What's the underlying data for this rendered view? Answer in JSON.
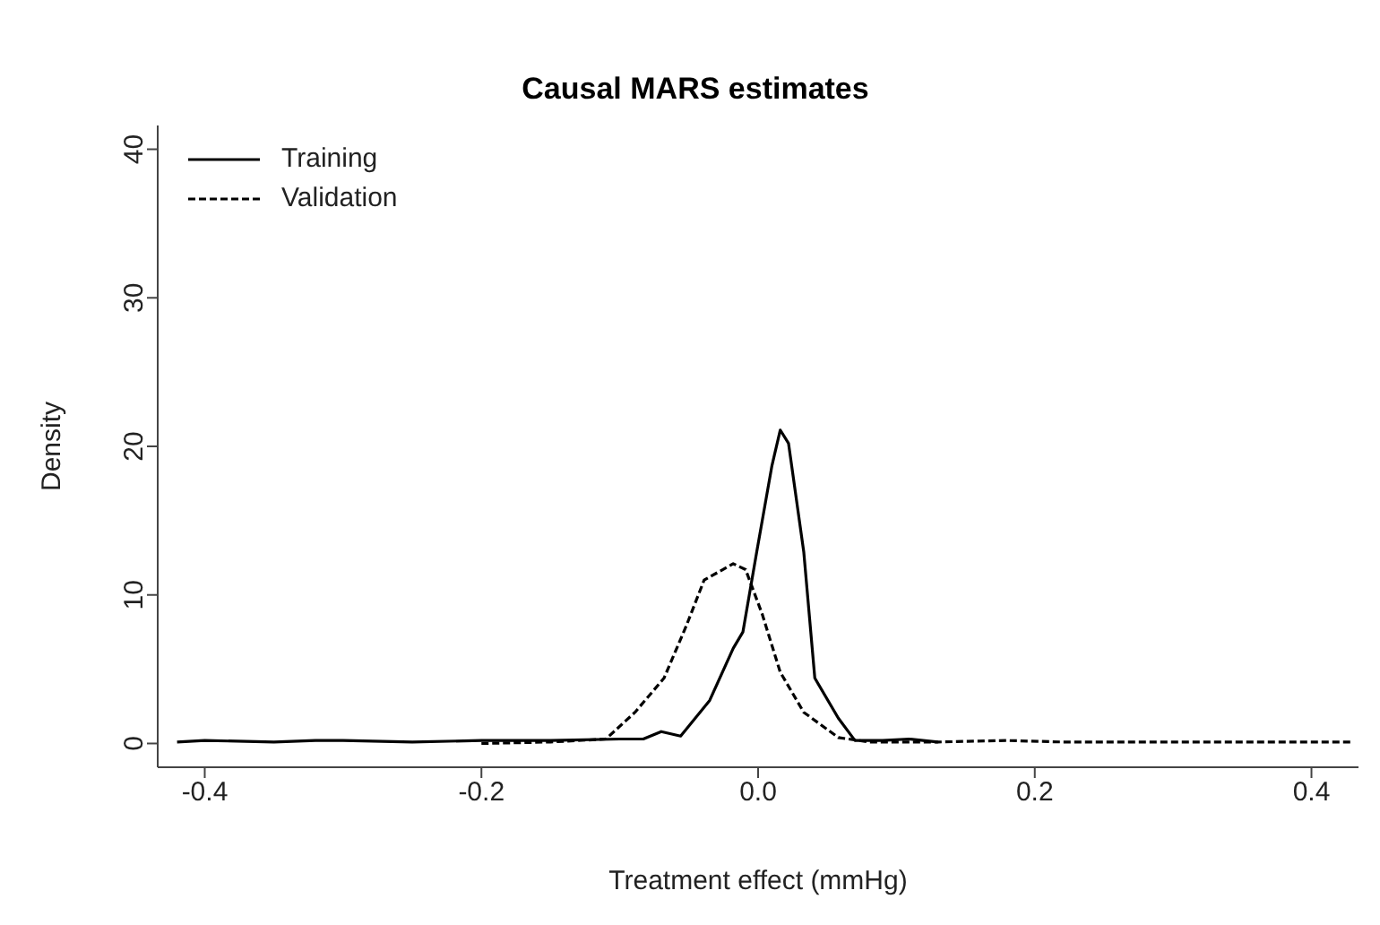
{
  "chart_data": {
    "type": "line",
    "title": "Causal MARS estimates",
    "xlabel": "Treatment effect (mmHg)",
    "ylabel": "Density",
    "xlim": [
      -0.434,
      0.434
    ],
    "xticks": [
      -0.4,
      -0.2,
      {
        "value": 0,
        "label": "0.0"
      },
      0.2,
      0.4
    ],
    "ylim": [
      -1.6,
      41.6
    ],
    "yticks": [
      0,
      10,
      20,
      30,
      40
    ],
    "grid": false,
    "legend": "top left",
    "marker": "none",
    "series": [
      {
        "name": "Training",
        "color": "#000000",
        "line_style": "solid",
        "x": [
          -0.42,
          -0.4,
          -0.35,
          -0.32,
          -0.3,
          -0.25,
          -0.2,
          -0.15,
          -0.1,
          -0.083,
          -0.07,
          -0.056,
          -0.035,
          -0.018,
          -0.011,
          -0.001,
          0.01,
          0.016,
          0.022,
          0.033,
          0.041,
          0.058,
          0.07,
          0.09,
          0.109,
          0.13
        ],
        "values": [
          0.1,
          0.2,
          0.1,
          0.2,
          0.2,
          0.1,
          0.2,
          0.2,
          0.3,
          0.3,
          0.8,
          0.5,
          2.9,
          6.4,
          7.5,
          12.9,
          18.7,
          21.1,
          20.2,
          12.9,
          4.4,
          1.7,
          0.2,
          0.2,
          0.3,
          0.1
        ]
      },
      {
        "name": "Validation",
        "color": "#000000",
        "line_style": "dashed",
        "x": [
          -0.2,
          -0.15,
          -0.11,
          -0.089,
          -0.068,
          -0.052,
          -0.039,
          -0.018,
          -0.009,
          0.003,
          0.016,
          0.033,
          0.058,
          0.08,
          0.1,
          0.13,
          0.18,
          0.22,
          0.3,
          0.35,
          0.43
        ],
        "values": [
          0.0,
          0.1,
          0.3,
          2.1,
          4.4,
          7.9,
          11.0,
          12.1,
          11.7,
          8.7,
          4.8,
          2.1,
          0.4,
          0.1,
          0.1,
          0.1,
          0.2,
          0.1,
          0.1,
          0.1,
          0.1
        ]
      }
    ]
  }
}
